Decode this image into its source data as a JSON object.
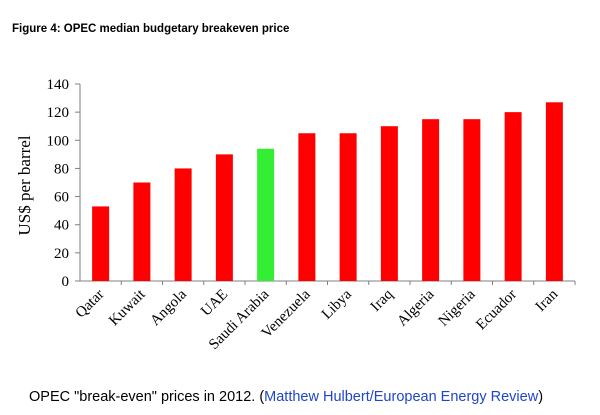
{
  "figure_title": "Figure 4: OPEC median budgetary breakeven price",
  "caption": {
    "prefix": "OPEC \"break-even\" prices in 2012. (",
    "link_text": "Matthew Hulbert/European Energy Review",
    "suffix": ")"
  },
  "colors": {
    "bar_default": "#ff0000",
    "bar_highlight": "#33ee33",
    "axis": "#808080",
    "caption_link": "#1f45c9"
  },
  "chart_data": {
    "type": "bar",
    "title": "",
    "ylabel": "US$ per barrel",
    "xlabel": "",
    "ylim": [
      0,
      140
    ],
    "yticks": [
      0,
      20,
      40,
      60,
      80,
      100,
      120,
      140
    ],
    "grid": false,
    "legend": "none",
    "categories": [
      "Qatar",
      "Kuwait",
      "Angola",
      "UAE",
      "Saudi Arabia",
      "Venezuela",
      "Libya",
      "Iraq",
      "Algeria",
      "Nigeria",
      "Ecuador",
      "Iran"
    ],
    "values": [
      53,
      70,
      80,
      90,
      94,
      105,
      105,
      110,
      115,
      115,
      120,
      127
    ],
    "highlight_category": "Saudi Arabia"
  }
}
